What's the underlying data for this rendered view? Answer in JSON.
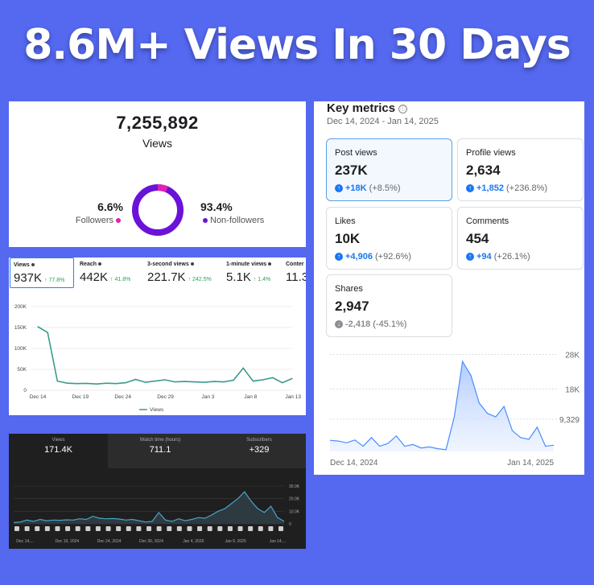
{
  "headline": "8.6M+ Views In 30 Days",
  "panel_a": {
    "total": "7,255,892",
    "label": "Views",
    "followers": {
      "pct": "6.6%",
      "label": "Followers",
      "color": "#e020b4",
      "value": 6.6
    },
    "non_followers": {
      "pct": "93.4%",
      "label": "Non-followers",
      "color": "#6a12d8",
      "value": 93.4
    }
  },
  "panel_b": {
    "stats": [
      {
        "title": "Views",
        "value": "937K",
        "delta": "↑ 77.8%",
        "selected": true
      },
      {
        "title": "Reach",
        "value": "442K",
        "delta": "↑ 41.8%"
      },
      {
        "title": "3-second views",
        "value": "221.7K",
        "delta": "↑ 242.5%"
      },
      {
        "title": "1-minute views",
        "value": "5.1K",
        "delta": "↑ 1.4%"
      },
      {
        "title": "Conter",
        "value": "11.3",
        "delta": ""
      }
    ],
    "chart_data": {
      "type": "line",
      "series": [
        {
          "name": "Views",
          "values": [
            152000,
            138000,
            22000,
            17000,
            16000,
            16500,
            15000,
            17000,
            16000,
            18000,
            26000,
            19000,
            22000,
            25000,
            20000,
            21000,
            20000,
            19000,
            21000,
            20000,
            24000,
            53000,
            22000,
            25000,
            30000,
            18000,
            28000
          ]
        }
      ],
      "xticks": [
        "Dec 14",
        "Dec 19",
        "Dec 24",
        "Dec 29",
        "Jan 3",
        "Jan 8",
        "Jan 13"
      ],
      "yticks": [
        "0",
        "50K",
        "100K",
        "150K",
        "200K"
      ],
      "ylim": [
        0,
        200000
      ],
      "color": "#3a9a8c"
    }
  },
  "panel_c": {
    "tabs": [
      {
        "title": "Views",
        "value": "171.4K",
        "selected": true
      },
      {
        "title": "Watch time (hours)",
        "value": "711.1"
      },
      {
        "title": "Subscribers",
        "value": "+329"
      }
    ],
    "chart_data": {
      "type": "area",
      "series": [
        {
          "values": [
            1000,
            1500,
            3000,
            2000,
            3500,
            2500,
            3000,
            2800,
            3200,
            3000,
            4000,
            3500,
            6000,
            4500,
            4000,
            4200,
            3800,
            3000,
            3500,
            2500,
            1500,
            2000,
            9000,
            3000,
            2000,
            4000,
            2500,
            3500,
            5000,
            4500,
            7000,
            10000,
            12000,
            16000,
            20000,
            25500,
            18000,
            12000,
            9000,
            14000,
            5000,
            2000
          ]
        }
      ],
      "xticks": [
        "Dec 14,...",
        "Dec 19, 2024",
        "Dec 24, 2024",
        "Dec 30, 2024",
        "Jan 4, 2025",
        "Jan 9, 2025",
        "Jan 14,..."
      ],
      "yticks": [
        "0",
        "10.0K",
        "20.0K",
        "30.0K"
      ],
      "ylim": [
        0,
        30000
      ],
      "color": "#4aa3c8"
    }
  },
  "panel_d": {
    "title": "Key metrics",
    "info_icon": "ⓘ",
    "range": "Dec 14, 2024 - Jan 14, 2025",
    "cards": [
      {
        "title": "Post views",
        "value": "237K",
        "delta": "+18K",
        "pct": "(+8.5%)",
        "dir": "up",
        "selected": true
      },
      {
        "title": "Profile views",
        "value": "2,634",
        "delta": "+1,852",
        "pct": "(+236.8%)",
        "dir": "up"
      },
      {
        "title": "Likes",
        "value": "10K",
        "delta": "+4,906",
        "pct": "(+92.6%)",
        "dir": "up"
      },
      {
        "title": "Comments",
        "value": "454",
        "delta": "+94",
        "pct": "(+26.1%)",
        "dir": "up"
      },
      {
        "title": "Shares",
        "value": "2,947",
        "delta": "-2,418",
        "pct": "(-45.1%)",
        "dir": "down"
      }
    ],
    "chart_data": {
      "type": "area",
      "series": [
        {
          "values": [
            3200,
            3000,
            2500,
            3300,
            1500,
            4000,
            1500,
            2300,
            4500,
            1500,
            2000,
            1000,
            1300,
            800,
            500,
            10000,
            26000,
            22000,
            14000,
            11000,
            10000,
            13000,
            6000,
            4000,
            3500,
            7000,
            1500,
            1800
          ]
        }
      ],
      "xticks": [
        "Dec 14, 2024",
        "Jan 14, 2025"
      ],
      "yticks": [
        "28K",
        "18K",
        "9,329"
      ],
      "ylim": [
        0,
        30000
      ],
      "color": "#4a8cff"
    }
  }
}
